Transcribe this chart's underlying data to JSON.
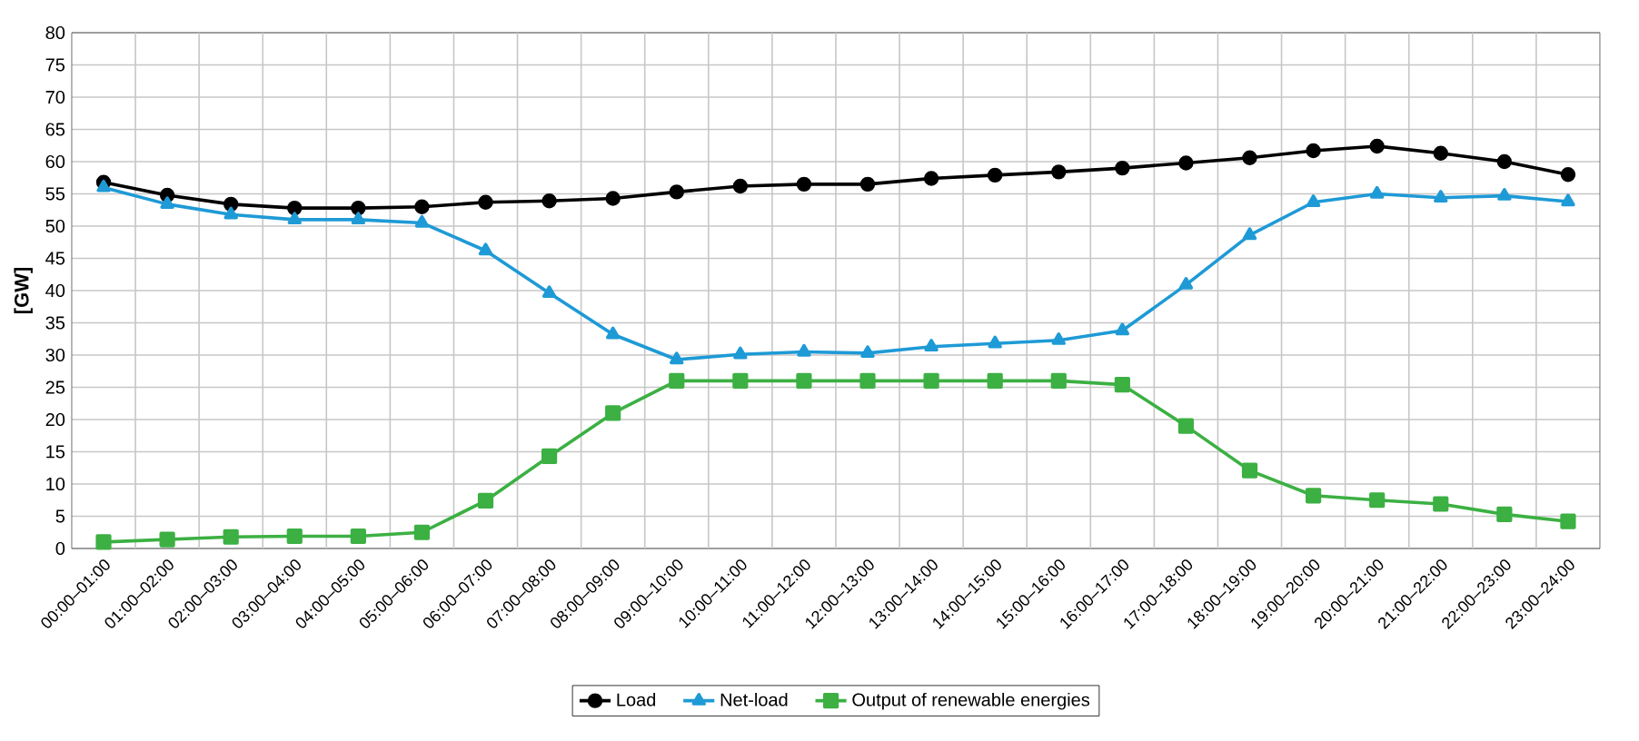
{
  "chart_data": {
    "type": "line",
    "ylabel": "[GW]",
    "categories": [
      "00:00–01:00",
      "01:00–02:00",
      "02:00–03:00",
      "03:00–04:00",
      "04:00–05:00",
      "05:00–06:00",
      "06:00–07:00",
      "07:00–08:00",
      "08:00–09:00",
      "09:00–10:00",
      "10:00–11:00",
      "11:00–12:00",
      "12:00–13:00",
      "13:00–14:00",
      "14:00–15:00",
      "15:00–16:00",
      "16:00–17:00",
      "17:00–18:00",
      "18:00–19:00",
      "19:00–20:00",
      "20:00–21:00",
      "21:00–22:00",
      "22:00–23:00",
      "23:00–24:00"
    ],
    "series": [
      {
        "name": "Load",
        "color": "#000000",
        "marker": "circle",
        "values": [
          56.8,
          54.8,
          53.4,
          52.8,
          52.8,
          53.0,
          53.7,
          53.9,
          54.3,
          55.3,
          56.2,
          56.5,
          56.5,
          57.4,
          57.9,
          58.4,
          59.0,
          59.8,
          60.6,
          61.7,
          62.4,
          61.3,
          60.0,
          58.0
        ]
      },
      {
        "name": "Net-load",
        "color": "#1e9ad6",
        "marker": "triangle",
        "values": [
          56.0,
          53.4,
          51.8,
          51.0,
          51.0,
          50.5,
          46.2,
          39.6,
          33.2,
          29.3,
          30.1,
          30.5,
          30.3,
          31.3,
          31.8,
          32.3,
          33.8,
          40.9,
          48.6,
          53.7,
          55.0,
          54.4,
          54.7,
          53.8
        ]
      },
      {
        "name": "Output of renewable energies",
        "color": "#3cb043",
        "marker": "square",
        "values": [
          1.0,
          1.4,
          1.8,
          1.9,
          1.9,
          2.5,
          7.4,
          14.3,
          21.0,
          26.0,
          26.0,
          26.0,
          26.0,
          26.0,
          26.0,
          26.0,
          25.4,
          19.0,
          12.1,
          8.2,
          7.5,
          6.9,
          5.3,
          4.2
        ]
      }
    ],
    "ylim": [
      0,
      80
    ],
    "yticks": [
      0,
      5,
      10,
      15,
      20,
      25,
      30,
      35,
      40,
      45,
      50,
      55,
      60,
      65,
      70,
      75,
      80
    ],
    "grid": true,
    "legend": "bottom",
    "line_style": "solid"
  }
}
